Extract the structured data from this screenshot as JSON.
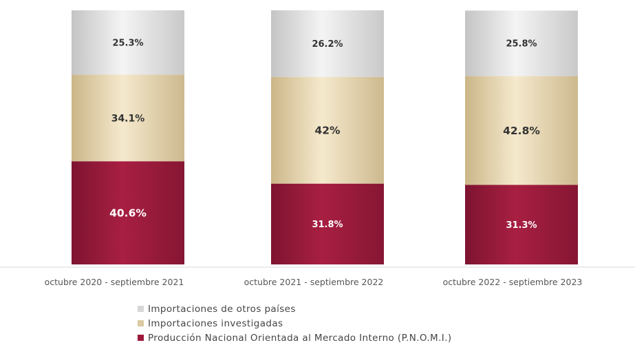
{
  "chart_data": {
    "type": "bar",
    "stacked": true,
    "percent_stacked": true,
    "categories": [
      "octubre 2020 - septiembre 2021",
      "octubre 2021 - septiembre 2022",
      "octubre 2022 - septiembre 2023"
    ],
    "series": [
      {
        "name": "Producción Nacional Orientada al Mercado Interno (P.N.O.M.I.)",
        "values": [
          40.6,
          31.8,
          31.3
        ],
        "labels": [
          "40.6%",
          "31.8%",
          "31.3%"
        ],
        "color": "#9c1a3c",
        "label_color": "#ffffff"
      },
      {
        "name": "Importaciones investigadas",
        "values": [
          34.1,
          42,
          42.8
        ],
        "labels": [
          "34.1%",
          "42%",
          "42.8%"
        ],
        "color": "#dccaa4",
        "label_color": "#333333"
      },
      {
        "name": "Importaciones de otros países",
        "values": [
          25.3,
          26.2,
          25.8
        ],
        "labels": [
          "25.3%",
          "26.2%",
          "25.8%"
        ],
        "color": "#d6d6d6",
        "label_color": "#333333"
      }
    ],
    "ylim": [
      0,
      100
    ],
    "grid": false,
    "legend_position": "bottom-center",
    "legend_order": [
      2,
      1,
      0
    ]
  }
}
